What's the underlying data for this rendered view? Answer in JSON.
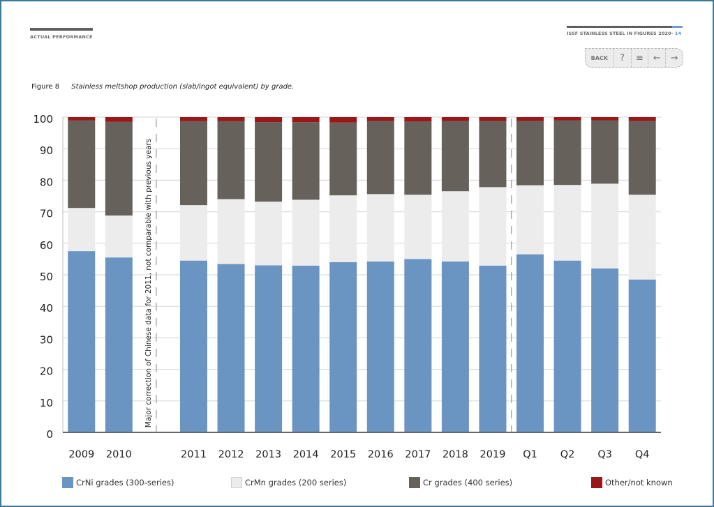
{
  "header": {
    "section": "ACTUAL PERFORMANCE",
    "publication": "ISSF STAINLESS STEEL IN FIGURES 2020-",
    "page": "14"
  },
  "nav": {
    "back_label": "BACK",
    "help_icon": "?",
    "menu_icon": "≡",
    "prev_icon": "←",
    "next_icon": "→"
  },
  "figure": {
    "number": "Figure 8",
    "caption": "Stainless meltshop production (slab/ingot equivalent) by grade."
  },
  "colors": {
    "crni": "#6a95c2",
    "crmn": "#ececec",
    "cr": "#66625b",
    "other": "#9b1717",
    "frame": "#3b7a99"
  },
  "chart_data": {
    "type": "bar",
    "stacked": true,
    "title": "Stainless meltshop production (slab/ingot equivalent) by grade.",
    "xlabel": "",
    "ylabel": "",
    "ylim": [
      0,
      100
    ],
    "yticks": [
      0,
      10,
      20,
      30,
      40,
      50,
      60,
      70,
      80,
      90,
      100
    ],
    "grid": true,
    "legend_position": "bottom",
    "categories": [
      "2009",
      "2010",
      "",
      "2011",
      "2012",
      "2013",
      "2014",
      "2015",
      "2016",
      "2017",
      "2018",
      "2019",
      "Q1",
      "Q2",
      "Q3",
      "Q4"
    ],
    "series": [
      {
        "name": "CrNi grades (300-series)",
        "values": [
          57.5,
          55.5,
          null,
          54.5,
          53.4,
          53.0,
          52.9,
          54.0,
          54.2,
          55.0,
          54.2,
          52.9,
          56.5,
          54.5,
          52.0,
          48.5
        ]
      },
      {
        "name": "CrMn grades (200 series)",
        "values": [
          13.7,
          13.3,
          null,
          17.6,
          20.6,
          20.2,
          20.9,
          21.2,
          21.4,
          20.4,
          22.3,
          24.9,
          21.9,
          24.0,
          26.9,
          26.9
        ]
      },
      {
        "name": "Cr grades (400 series)",
        "values": [
          27.8,
          29.7,
          null,
          26.6,
          24.7,
          25.2,
          24.6,
          23.1,
          23.2,
          23.2,
          22.3,
          21.0,
          20.4,
          20.5,
          20.1,
          23.4
        ]
      },
      {
        "name": "Other/not known",
        "values": [
          1.0,
          1.5,
          null,
          1.3,
          1.3,
          1.6,
          1.6,
          1.7,
          1.2,
          1.4,
          1.2,
          1.2,
          1.2,
          1.0,
          1.0,
          1.2
        ]
      }
    ],
    "annotations": [
      {
        "text": "Major correction of Chinese data for 2011, not comparable with previous years",
        "at_category_index": 2,
        "style": "vertical dashed separator"
      },
      {
        "text": "",
        "between": [
          "2019",
          "Q1"
        ],
        "style": "vertical dashed separator"
      }
    ]
  }
}
